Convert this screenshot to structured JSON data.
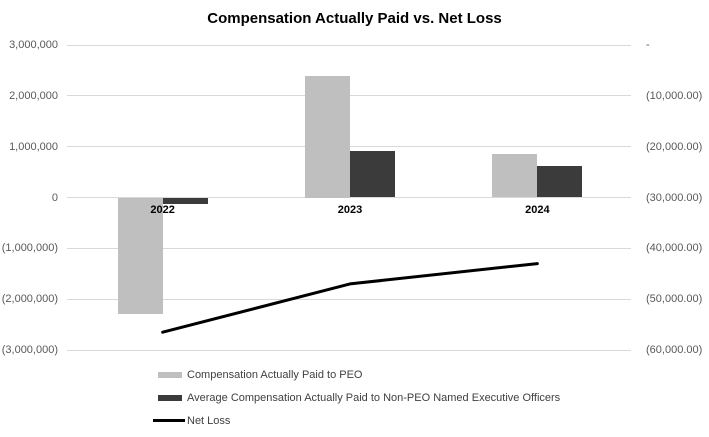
{
  "chart_data": {
    "type": "combo",
    "title": "Compensation Actually Paid vs. Net Loss",
    "categories": [
      "2022",
      "2023",
      "2024"
    ],
    "series": [
      {
        "name": "Compensation Actually Paid to PEO",
        "type": "bar",
        "axis": "left",
        "color": "#BFBFBF",
        "values": [
          -2300000,
          2400000,
          850000
        ]
      },
      {
        "name": "Average Compensation Actually Paid to Non-PEO Named Executive Officers",
        "type": "bar",
        "axis": "left",
        "color": "#3B3B3B",
        "values": [
          -120000,
          920000,
          620000
        ]
      },
      {
        "name": "Net Loss",
        "type": "line",
        "axis": "right",
        "color": "#000000",
        "values": [
          -56500,
          -47000,
          -43000
        ]
      }
    ],
    "left_axis": {
      "min": -3000000,
      "max": 3000000,
      "tick_step": 1000000,
      "labels": [
        "3,000,000",
        "2,000,000",
        "1,000,000",
        "0",
        "(1,000,000)",
        "(2,000,000)",
        "(3,000,000)"
      ]
    },
    "right_axis": {
      "min": -60000,
      "max": 0,
      "tick_step": 10000,
      "labels": [
        "-",
        "(10,000.00)",
        "(20,000.00)",
        "(30,000.00)",
        "(40,000.00)",
        "(50,000.00)",
        "(60,000.00)"
      ]
    },
    "grid": true,
    "legend_position": "bottom-left",
    "colors": {
      "gridline": "#D9D9D9",
      "axis_label": "#595959",
      "category_label": "#000000",
      "title": "#000000",
      "legend_label": "#404040",
      "background": "#FFFFFF"
    }
  }
}
